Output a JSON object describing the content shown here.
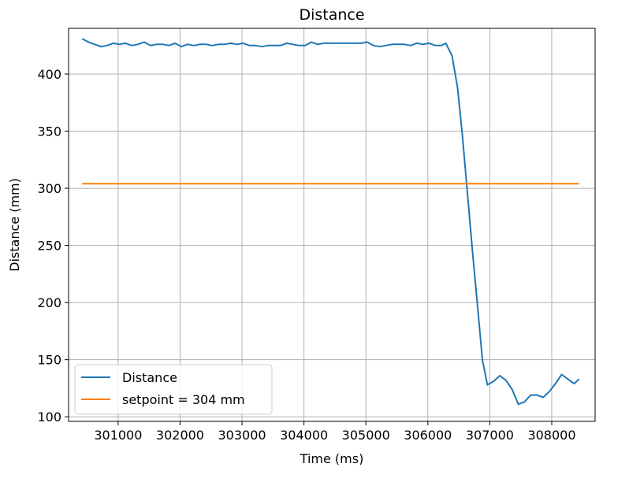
{
  "chart_data": {
    "type": "line",
    "title": "Distance",
    "xlabel": "Time (ms)",
    "ylabel": "Distance (mm)",
    "xlim": [
      300200,
      308700
    ],
    "ylim": [
      96,
      440
    ],
    "xticks": [
      301000,
      302000,
      303000,
      304000,
      305000,
      306000,
      307000,
      308000
    ],
    "yticks": [
      100,
      150,
      200,
      250,
      300,
      350,
      400
    ],
    "grid": true,
    "legend_position": "lower-left",
    "series": [
      {
        "name": "Distance",
        "color": "#1f77b4",
        "x": [
          300420,
          300520,
          300620,
          300720,
          300820,
          300920,
          301020,
          301120,
          301220,
          301320,
          301420,
          301520,
          301620,
          301720,
          301820,
          301920,
          302020,
          302120,
          302220,
          302320,
          302420,
          302520,
          302620,
          302720,
          302820,
          302920,
          303020,
          303120,
          303220,
          303320,
          303420,
          303520,
          303620,
          303720,
          303820,
          303920,
          304020,
          304120,
          304220,
          304320,
          304420,
          304520,
          304620,
          304720,
          304820,
          304920,
          305020,
          305120,
          305220,
          305320,
          305420,
          305520,
          305620,
          305720,
          305820,
          305920,
          306020,
          306120,
          306220,
          306290,
          306390,
          306480,
          306560,
          306640,
          306720,
          306800,
          306880,
          306960,
          307060,
          307160,
          307260,
          307360,
          307460,
          307560,
          307660,
          307760,
          307860,
          307960,
          308060,
          308160,
          308260,
          308360,
          308440
        ],
        "y": [
          431,
          428,
          426,
          424,
          425,
          427,
          426,
          427,
          425,
          426,
          428,
          425,
          426,
          426,
          425,
          427,
          424,
          426,
          425,
          426,
          426,
          425,
          426,
          426,
          427,
          426,
          427,
          425,
          425,
          424,
          425,
          425,
          425,
          427,
          426,
          425,
          425,
          428,
          426,
          427,
          427,
          427,
          427,
          427,
          427,
          427,
          428,
          425,
          424,
          425,
          426,
          426,
          426,
          425,
          427,
          426,
          427,
          425,
          425,
          427,
          416,
          388,
          345,
          295,
          245,
          198,
          150,
          128,
          131,
          136,
          132,
          124,
          111,
          113,
          119,
          119,
          117,
          122,
          129,
          137,
          133,
          129,
          133
        ]
      },
      {
        "name": "setpoint = 304 mm",
        "color": "#ff7f0e",
        "x": [
          300420,
          308440
        ],
        "y": [
          304,
          304
        ]
      }
    ]
  }
}
